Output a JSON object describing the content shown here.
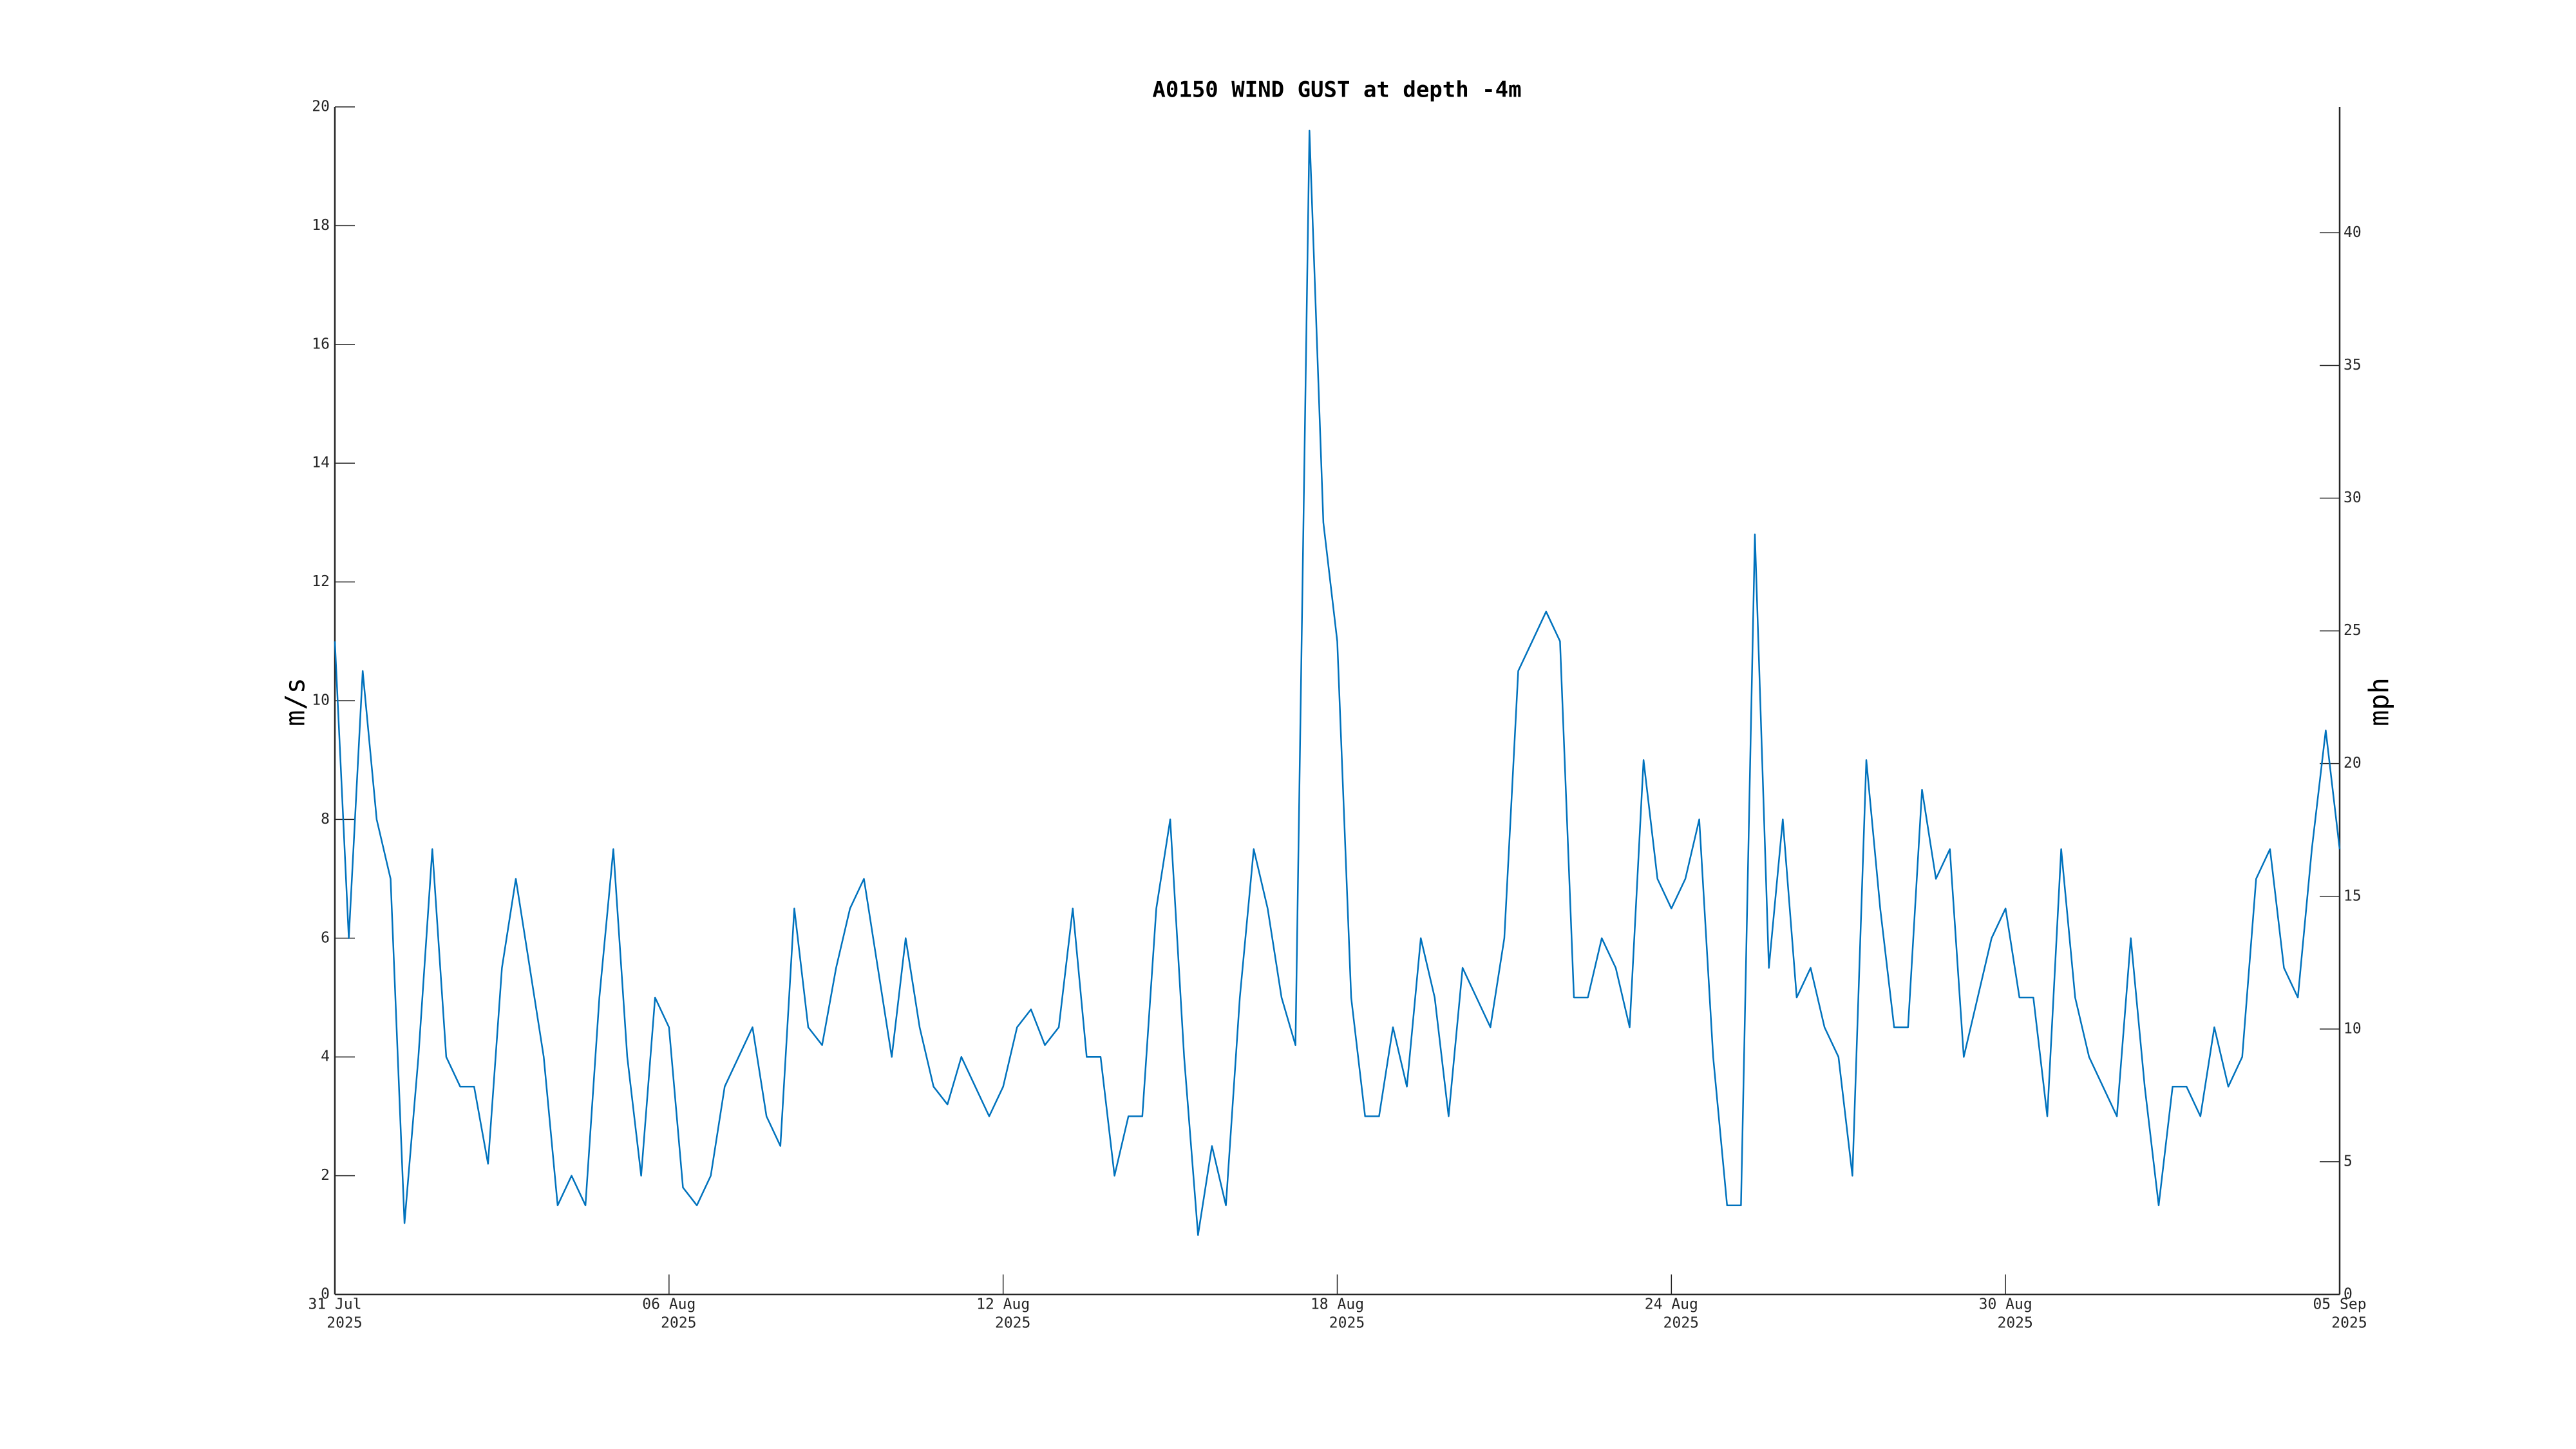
{
  "chart_data": {
    "type": "line",
    "title": "A0150 WIND GUST at depth -4m",
    "ylabel": "m/s",
    "y2label": "mph",
    "color": "#0072bd",
    "xlim": [
      "2025-07-31",
      "2025-09-05"
    ],
    "xticks": [
      {
        "value": "2025-07-31",
        "label": [
          "31 Jul",
          "2025"
        ]
      },
      {
        "value": "2025-08-06",
        "label": [
          "06 Aug",
          "2025"
        ]
      },
      {
        "value": "2025-08-12",
        "label": [
          "12 Aug",
          "2025"
        ]
      },
      {
        "value": "2025-08-18",
        "label": [
          "18 Aug",
          "2025"
        ]
      },
      {
        "value": "2025-08-24",
        "label": [
          "24 Aug",
          "2025"
        ]
      },
      {
        "value": "2025-08-30",
        "label": [
          "30 Aug",
          "2025"
        ]
      },
      {
        "value": "2025-09-05",
        "label": [
          "05 Sep",
          "2025"
        ]
      }
    ],
    "ylim": [
      0,
      20
    ],
    "yticks": [
      0,
      2,
      4,
      6,
      8,
      10,
      12,
      14,
      16,
      18,
      20
    ],
    "y2lim": [
      0,
      44.74
    ],
    "y2ticks": [
      0,
      5,
      10,
      15,
      20,
      25,
      30,
      35,
      40
    ],
    "x": [
      "2025-07-31T00:00",
      "2025-07-31T06:00",
      "2025-07-31T12:00",
      "2025-07-31T18:00",
      "2025-08-01T00:00",
      "2025-08-01T06:00",
      "2025-08-01T12:00",
      "2025-08-01T18:00",
      "2025-08-02T00:00",
      "2025-08-02T06:00",
      "2025-08-02T12:00",
      "2025-08-02T18:00",
      "2025-08-03T00:00",
      "2025-08-03T06:00",
      "2025-08-03T12:00",
      "2025-08-03T18:00",
      "2025-08-04T00:00",
      "2025-08-04T06:00",
      "2025-08-04T12:00",
      "2025-08-04T18:00",
      "2025-08-05T00:00",
      "2025-08-05T06:00",
      "2025-08-05T12:00",
      "2025-08-05T18:00",
      "2025-08-06T00:00",
      "2025-08-06T06:00",
      "2025-08-06T12:00",
      "2025-08-06T18:00",
      "2025-08-07T00:00",
      "2025-08-07T06:00",
      "2025-08-07T12:00",
      "2025-08-07T18:00",
      "2025-08-08T00:00",
      "2025-08-08T06:00",
      "2025-08-08T12:00",
      "2025-08-08T18:00",
      "2025-08-09T00:00",
      "2025-08-09T06:00",
      "2025-08-09T12:00",
      "2025-08-09T18:00",
      "2025-08-10T00:00",
      "2025-08-10T06:00",
      "2025-08-10T12:00",
      "2025-08-10T18:00",
      "2025-08-11T00:00",
      "2025-08-11T06:00",
      "2025-08-11T12:00",
      "2025-08-11T18:00",
      "2025-08-12T00:00",
      "2025-08-12T06:00",
      "2025-08-12T12:00",
      "2025-08-12T18:00",
      "2025-08-13T00:00",
      "2025-08-13T06:00",
      "2025-08-13T12:00",
      "2025-08-13T18:00",
      "2025-08-14T00:00",
      "2025-08-14T06:00",
      "2025-08-14T12:00",
      "2025-08-14T18:00",
      "2025-08-15T00:00",
      "2025-08-15T06:00",
      "2025-08-15T12:00",
      "2025-08-15T18:00",
      "2025-08-16T00:00",
      "2025-08-16T06:00",
      "2025-08-16T12:00",
      "2025-08-16T18:00",
      "2025-08-17T00:00",
      "2025-08-17T06:00",
      "2025-08-17T12:00",
      "2025-08-17T18:00",
      "2025-08-18T00:00",
      "2025-08-18T06:00",
      "2025-08-18T12:00",
      "2025-08-18T18:00",
      "2025-08-19T00:00",
      "2025-08-19T06:00",
      "2025-08-19T12:00",
      "2025-08-19T18:00",
      "2025-08-20T00:00",
      "2025-08-20T06:00",
      "2025-08-20T12:00",
      "2025-08-20T18:00",
      "2025-08-21T00:00",
      "2025-08-21T06:00",
      "2025-08-21T12:00",
      "2025-08-21T18:00",
      "2025-08-22T00:00",
      "2025-08-22T06:00",
      "2025-08-22T12:00",
      "2025-08-22T18:00",
      "2025-08-23T00:00",
      "2025-08-23T06:00",
      "2025-08-23T12:00",
      "2025-08-23T18:00",
      "2025-08-24T00:00",
      "2025-08-24T06:00",
      "2025-08-24T12:00",
      "2025-08-24T18:00",
      "2025-08-25T00:00",
      "2025-08-25T06:00",
      "2025-08-25T12:00",
      "2025-08-25T18:00",
      "2025-08-26T00:00",
      "2025-08-26T06:00",
      "2025-08-26T12:00",
      "2025-08-26T18:00",
      "2025-08-27T00:00",
      "2025-08-27T06:00",
      "2025-08-27T12:00",
      "2025-08-27T18:00",
      "2025-08-28T00:00",
      "2025-08-28T06:00",
      "2025-08-28T12:00",
      "2025-08-28T18:00",
      "2025-08-29T00:00",
      "2025-08-29T06:00",
      "2025-08-29T12:00",
      "2025-08-29T18:00",
      "2025-08-30T00:00",
      "2025-08-30T06:00",
      "2025-08-30T12:00",
      "2025-08-30T18:00",
      "2025-08-31T00:00",
      "2025-08-31T06:00",
      "2025-08-31T12:00",
      "2025-08-31T18:00",
      "2025-09-01T00:00",
      "2025-09-01T06:00",
      "2025-09-01T12:00",
      "2025-09-01T18:00",
      "2025-09-02T00:00",
      "2025-09-02T06:00",
      "2025-09-02T12:00",
      "2025-09-02T18:00",
      "2025-09-03T00:00",
      "2025-09-03T06:00",
      "2025-09-03T12:00",
      "2025-09-03T18:00",
      "2025-09-04T00:00",
      "2025-09-04T06:00",
      "2025-09-04T12:00",
      "2025-09-04T18:00",
      "2025-09-05T00:00"
    ],
    "values": [
      11,
      6,
      10.5,
      8,
      7,
      1.2,
      4,
      7.5,
      4,
      3.5,
      3.5,
      2.2,
      5.5,
      7,
      5.5,
      4,
      1.5,
      2,
      1.5,
      5,
      7.5,
      4,
      2,
      5,
      4.5,
      1.8,
      1.5,
      2,
      3.5,
      4,
      4.5,
      3,
      2.5,
      6.5,
      4.5,
      4.2,
      5.5,
      6.5,
      7,
      5.5,
      4,
      6,
      4.5,
      3.5,
      3.2,
      4,
      3.5,
      3,
      3.5,
      4.5,
      4.8,
      4.2,
      4.5,
      6.5,
      4,
      4,
      2,
      3,
      3,
      6.5,
      8,
      4,
      1,
      2.5,
      1.5,
      5,
      7.5,
      6.5,
      5,
      4.2,
      19.6,
      13,
      11,
      5,
      3,
      3,
      4.5,
      3.5,
      6,
      5,
      3,
      5.5,
      5,
      4.5,
      6,
      10.5,
      11,
      11.5,
      11,
      5,
      5,
      6,
      5.5,
      4.5,
      9,
      7,
      6.5,
      7,
      8,
      4,
      1.5,
      1.5,
      12.8,
      5.5,
      8,
      5,
      5.5,
      4.5,
      4,
      2,
      9,
      6.5,
      4.5,
      4.5,
      8.5,
      7,
      7.5,
      4,
      5,
      6,
      6.5,
      5,
      5,
      3,
      7.5,
      5,
      4,
      3.5,
      3,
      6,
      3.5,
      1.5,
      3.5,
      3.5,
      3,
      4.5,
      3.5,
      4,
      7,
      7.5,
      5.5,
      5,
      7.5,
      9.5,
      7.5
    ]
  }
}
